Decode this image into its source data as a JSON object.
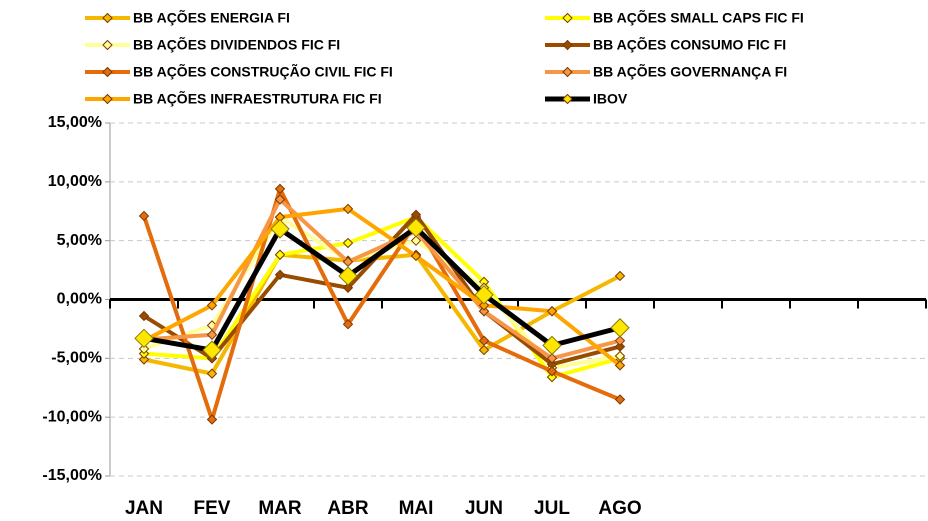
{
  "chart_data": {
    "type": "line",
    "categories": [
      "JAN",
      "FEV",
      "MAR",
      "ABR",
      "MAI",
      "JUN",
      "JUL",
      "AGO",
      null,
      null,
      null,
      null
    ],
    "ylim": [
      -15,
      15
    ],
    "yticks": [
      {
        "value": -15,
        "label": "-15,00%"
      },
      {
        "value": -10,
        "label": "-10,00%"
      },
      {
        "value": -5,
        "label": "-5,00%"
      },
      {
        "value": 0,
        "label": "0,00%"
      },
      {
        "value": 5,
        "label": "5,00%"
      },
      {
        "value": 10,
        "label": "10,00%"
      },
      {
        "value": 15,
        "label": "15,00%"
      }
    ],
    "grid": true,
    "legend": "top",
    "series": [
      {
        "name": "BB AÇÕES ENERGIA FI",
        "color": "#f5b800",
        "values": [
          -5.1,
          -6.3,
          3.8,
          3.3,
          3.8,
          -4.3,
          -1.0,
          2.0,
          null,
          null,
          null,
          null
        ]
      },
      {
        "name": "BB AÇÕES SMALL CAPS FIC FI",
        "color": "#ffff00",
        "values": [
          -4.6,
          -5.0,
          3.8,
          4.8,
          7.0,
          1.5,
          -6.6,
          -5.0,
          null,
          null,
          null,
          null
        ]
      },
      {
        "name": "BB AÇÕES DIVIDENDOS FIC FI",
        "color": "#ffff99",
        "values": [
          -4.2,
          -2.2,
          7.0,
          3.3,
          5.0,
          1.0,
          -5.8,
          -4.8,
          null,
          null,
          null,
          null
        ]
      },
      {
        "name": "BB AÇÕES CONSUMO FIC FI",
        "color": "#994c00",
        "values": [
          -1.4,
          -5.0,
          2.1,
          1.0,
          7.2,
          -1.0,
          -5.5,
          -4.0,
          null,
          null,
          null,
          null
        ]
      },
      {
        "name": "BB AÇÕES CONSTRUÇÃO CIVIL FIC FI",
        "color": "#e46c0a",
        "values": [
          7.1,
          -10.2,
          9.4,
          -2.1,
          6.5,
          -3.5,
          -6.1,
          -8.5,
          null,
          null,
          null,
          null
        ]
      },
      {
        "name": "BB AÇÕES GOVERNANÇA FI",
        "color": "#f79646",
        "values": [
          -3.4,
          -3.0,
          8.5,
          3.2,
          5.8,
          -1.0,
          -5.0,
          -3.5,
          null,
          null,
          null,
          null
        ]
      },
      {
        "name": "BB AÇÕES INFRAESTRUTURA FIC FI",
        "color": "#ffa500",
        "values": [
          -3.5,
          -0.5,
          7.0,
          7.7,
          3.7,
          -0.5,
          -1.0,
          -5.6,
          null,
          null,
          null,
          null
        ]
      },
      {
        "name": "IBOV",
        "color": "#000000",
        "values": [
          -3.3,
          -4.3,
          6.0,
          2.0,
          6.1,
          0.4,
          -3.9,
          -2.4,
          null,
          null,
          null,
          null
        ]
      }
    ]
  }
}
